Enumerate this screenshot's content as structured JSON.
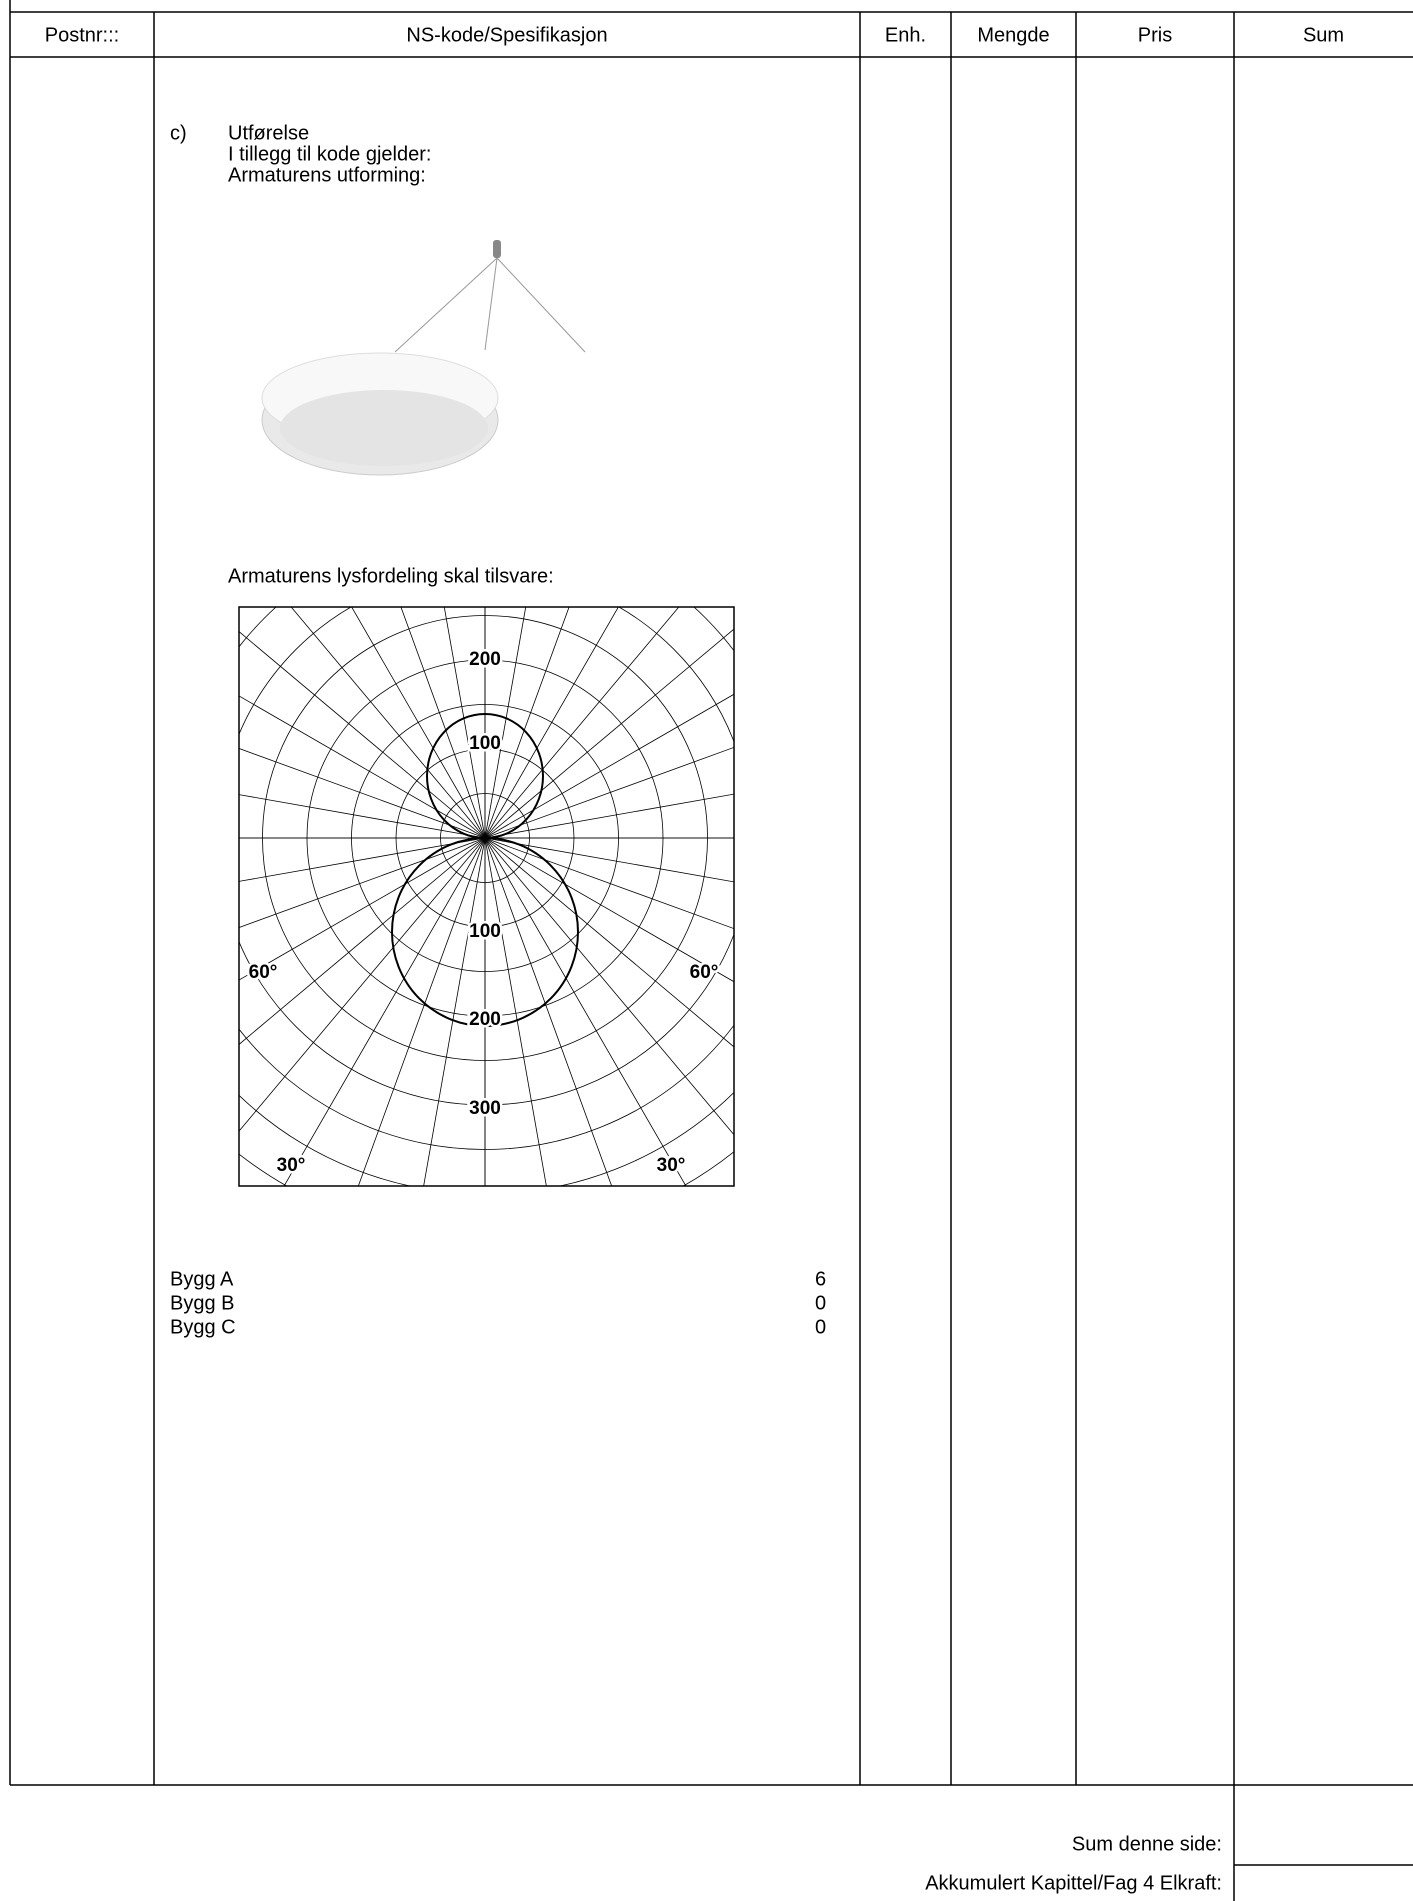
{
  "header": {
    "columns": [
      "Postnr:::",
      "NS-kode/Spesifikasjon",
      "Enh.",
      "Mengde",
      "Pris",
      "Sum"
    ]
  },
  "body": {
    "item": "c)",
    "lines": [
      "Utførelse",
      "I tillegg til kode gjelder:",
      "Armaturens utforming:"
    ],
    "diagram_caption": "Armaturens lysfordeling skal tilsvare:",
    "diagram": {
      "labels": [
        "200",
        "100",
        "100",
        "200",
        "300",
        "60°",
        "60°",
        "30°",
        "30°"
      ]
    },
    "quantities": [
      {
        "label": "Bygg A",
        "value": 6
      },
      {
        "label": "Bygg B",
        "value": 0
      },
      {
        "label": "Bygg C",
        "value": 0
      }
    ]
  },
  "footer": {
    "page_sum": "Sum denne side:",
    "accumulated": "Akkumulert Kapittel/Fag 4 Elkraft:"
  }
}
